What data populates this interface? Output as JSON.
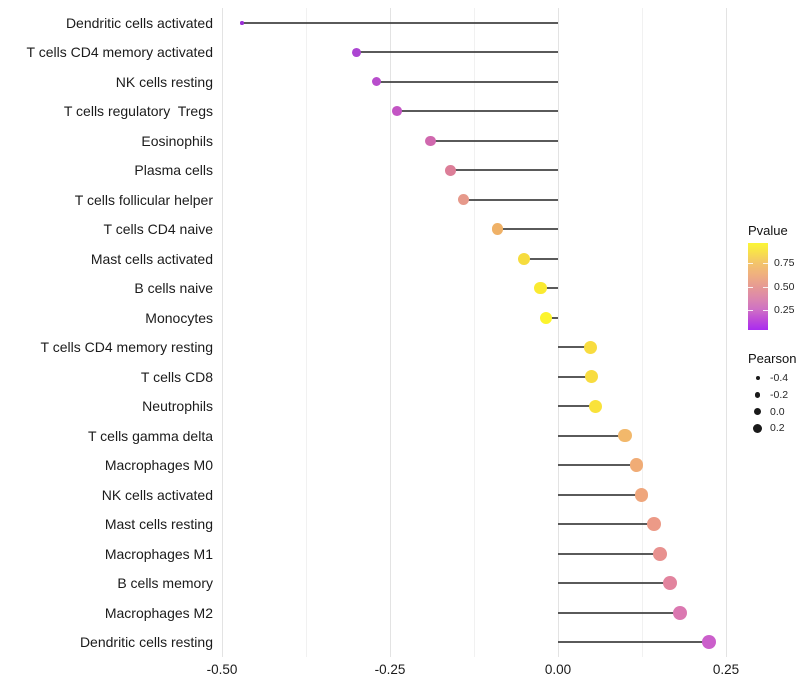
{
  "chart_data": {
    "type": "lollipop",
    "title": "",
    "xlabel": "",
    "ylabel": "",
    "encoding": {
      "x": "Pearson correlation",
      "y": "cell type",
      "color": "Pvalue",
      "size": "Pearson"
    },
    "x_axis": {
      "tick_labels": [
        "-0.50",
        "-0.25",
        "0.00",
        "0.25"
      ],
      "tick_values": [
        -0.5,
        -0.25,
        0,
        0.25
      ],
      "minor_tick_values": [
        -0.375,
        -0.125,
        0.125
      ],
      "range": [
        -0.52,
        0.27
      ],
      "grid": "vertical-only"
    },
    "points": [
      {
        "label": "Dendritic cells activated",
        "pearson": -0.47,
        "pvalue": 0.04,
        "color": "#9B2FD6"
      },
      {
        "label": "T cells CD4 memory activated",
        "pearson": -0.3,
        "pvalue": 0.11,
        "color": "#AC45D2"
      },
      {
        "label": "NK cells resting",
        "pearson": -0.27,
        "pvalue": 0.14,
        "color": "#B84DCC"
      },
      {
        "label": "T cells regulatory  Tregs",
        "pearson": -0.24,
        "pvalue": 0.17,
        "color": "#C355C4"
      },
      {
        "label": "Eosinophils",
        "pearson": -0.19,
        "pvalue": 0.25,
        "color": "#D068AE"
      },
      {
        "label": "Plasma cells",
        "pearson": -0.16,
        "pvalue": 0.33,
        "color": "#DC7E98"
      },
      {
        "label": "T cells follicular helper",
        "pearson": -0.14,
        "pvalue": 0.44,
        "color": "#E6998B"
      },
      {
        "label": "T cells CD4 naive",
        "pearson": -0.09,
        "pvalue": 0.61,
        "color": "#EFB167"
      },
      {
        "label": "Mast cells activated",
        "pearson": -0.05,
        "pvalue": 0.84,
        "color": "#F6DC3E"
      },
      {
        "label": "B cells naive",
        "pearson": -0.026,
        "pvalue": 0.92,
        "color": "#FAEA31"
      },
      {
        "label": "Monocytes",
        "pearson": -0.018,
        "pvalue": 0.96,
        "color": "#FCF42C"
      },
      {
        "label": "T cells CD4 memory resting",
        "pearson": 0.049,
        "pvalue": 0.83,
        "color": "#F8DC40"
      },
      {
        "label": "T cells CD8",
        "pearson": 0.05,
        "pvalue": 0.83,
        "color": "#F8DC40"
      },
      {
        "label": "Neutrophils",
        "pearson": 0.056,
        "pvalue": 0.87,
        "color": "#F9E23A"
      },
      {
        "label": "T cells gamma delta",
        "pearson": 0.1,
        "pvalue": 0.64,
        "color": "#F2B86B"
      },
      {
        "label": "Macrophages M0",
        "pearson": 0.117,
        "pvalue": 0.58,
        "color": "#F0AC76"
      },
      {
        "label": "NK cells activated",
        "pearson": 0.124,
        "pvalue": 0.56,
        "color": "#EFA67C"
      },
      {
        "label": "Mast cells resting",
        "pearson": 0.143,
        "pvalue": 0.47,
        "color": "#EC9A87"
      },
      {
        "label": "Macrophages M1",
        "pearson": 0.152,
        "pvalue": 0.43,
        "color": "#E8918F"
      },
      {
        "label": "B cells memory",
        "pearson": 0.167,
        "pvalue": 0.37,
        "color": "#E2849E"
      },
      {
        "label": "Macrophages M2",
        "pearson": 0.181,
        "pvalue": 0.3,
        "color": "#DB78B1"
      },
      {
        "label": "Dendritic cells resting",
        "pearson": 0.225,
        "pvalue": 0.21,
        "color": "#CB5FCB"
      }
    ],
    "legend": {
      "pvalue": {
        "title": "Pvalue",
        "tick_labels": [
          "0.75",
          "0.50",
          "0.25"
        ],
        "bar_range": [
          0.03,
          0.97
        ],
        "gradient_stops": [
          "#A92BF0 0%",
          "#BE4BD8 12%",
          "#CF72C4 24%",
          "#DC88AC 37%",
          "#E69A94 50%",
          "#EFAF80 63%",
          "#F3C46B 77%",
          "#F8E14B 90%",
          "#FBF636 100%"
        ]
      },
      "pearson": {
        "title": "Pearson",
        "items": [
          {
            "label": "-0.4",
            "value": -0.4
          },
          {
            "label": "-0.2",
            "value": -0.2
          },
          {
            "label": "0.0",
            "value": 0.0
          },
          {
            "label": "0.2",
            "value": 0.2
          }
        ],
        "dot_color": "#1A1A1A"
      }
    },
    "stem_color": "#3D3D3D",
    "background": "#FFFFFF"
  }
}
